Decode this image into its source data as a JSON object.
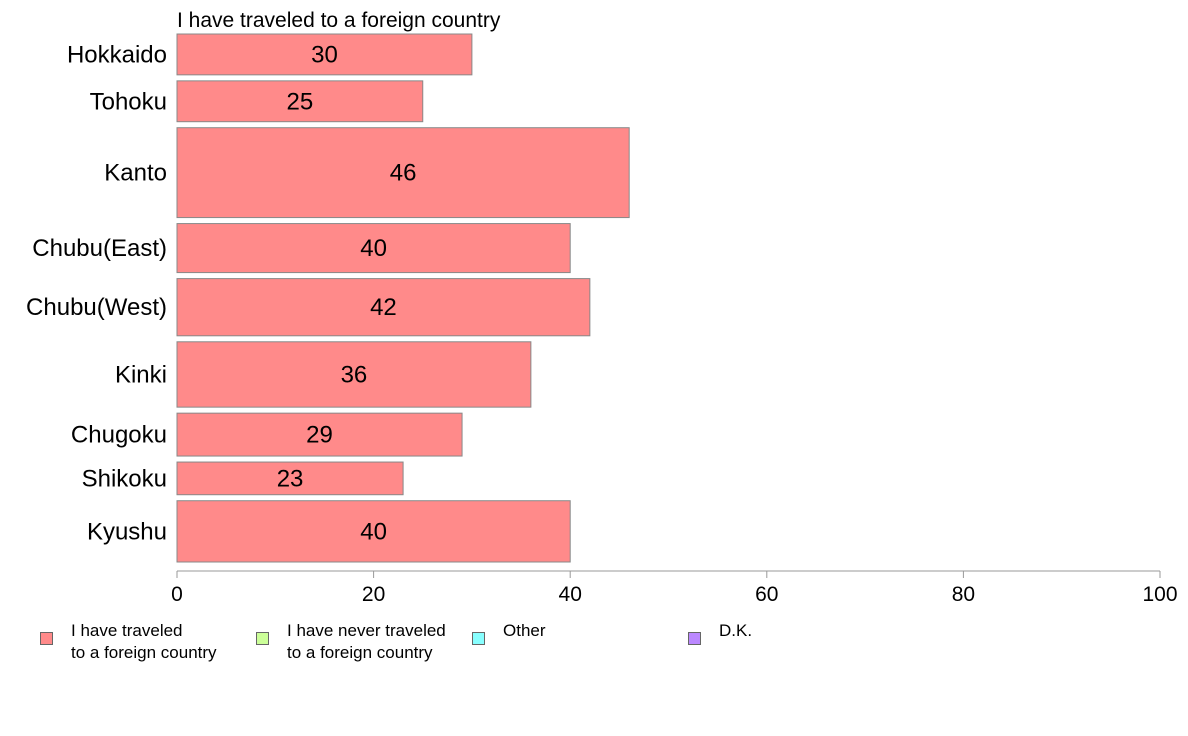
{
  "colors": {
    "traveled": "#ff8a8a",
    "never": "#ccff99",
    "other": "#88ffff",
    "dk": "#bb88ff",
    "bar_stroke": "#888888",
    "axis": "#999999"
  },
  "chart_data": {
    "type": "bar",
    "orientation": "horizontal",
    "title": "I have traveled to a foreign country",
    "categories": [
      "Hokkaido",
      "Tohoku",
      "Kanto",
      "Chubu(East)",
      "Chubu(West)",
      "Kinki",
      "Chugoku",
      "Shikoku",
      "Kyushu"
    ],
    "values": [
      30,
      25,
      46,
      40,
      42,
      36,
      29,
      23,
      40
    ],
    "bar_weights": [
      1,
      1,
      2.2,
      1.2,
      1.4,
      1.6,
      1.05,
      0.8,
      1.5
    ],
    "xlim": [
      0,
      100
    ],
    "xticks": [
      0,
      20,
      40,
      60,
      80,
      100
    ],
    "xlabel": "",
    "ylabel": "",
    "grid": false,
    "legend_position": "bottom"
  },
  "legend": [
    {
      "label": "I have traveled\nto a foreign country",
      "color_key": "traveled"
    },
    {
      "label": "I have never traveled\nto a foreign country",
      "color_key": "never"
    },
    {
      "label": "Other",
      "color_key": "other"
    },
    {
      "label": "D.K.",
      "color_key": "dk"
    }
  ]
}
